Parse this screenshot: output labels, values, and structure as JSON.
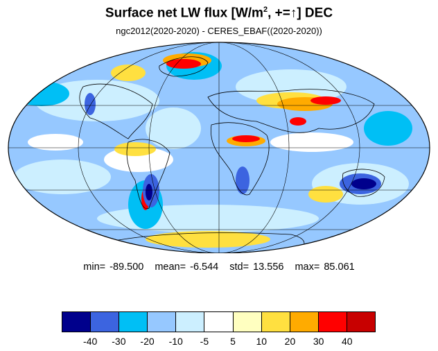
{
  "title": {
    "main": "Surface net LW flux [W/m",
    "sup": "2",
    "mid": ", +=",
    "arrow": "↑",
    "end": "]  DEC"
  },
  "subtitle": "ngc2012(2020-2020) - CERES_EBAF((2020-2020))",
  "stats": {
    "min_label": "min=",
    "min": "-89.500",
    "mean_label": "mean=",
    "mean": "-6.544",
    "std_label": "std=",
    "std": "13.556",
    "max_label": "max=",
    "max": "85.061"
  },
  "colorbar": {
    "colors": [
      "#00008c",
      "#3c64e0",
      "#00bff5",
      "#96c8ff",
      "#ccefff",
      "#ffffff",
      "#ffffc0",
      "#ffe040",
      "#ffab00",
      "#ff0000",
      "#c80000"
    ],
    "labels": [
      "-40",
      "-30",
      "-20",
      "-10",
      "-5",
      "5",
      "10",
      "20",
      "30",
      "40"
    ]
  },
  "map": {
    "projection": "mollweide",
    "background_color": "#96c8ff",
    "grid": true
  }
}
